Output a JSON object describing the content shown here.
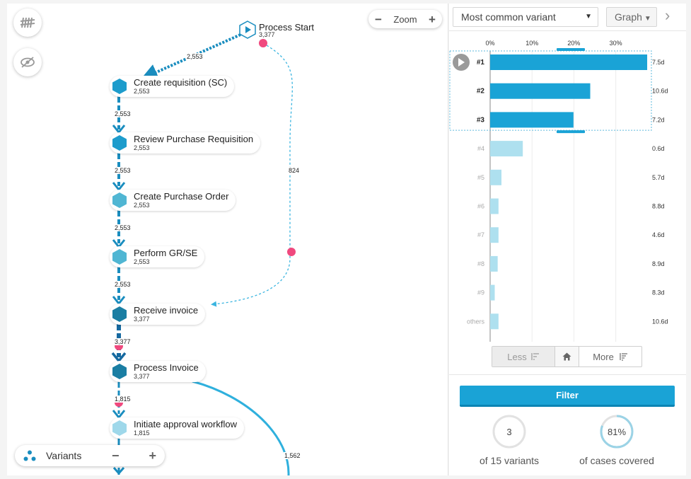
{
  "canvas": {
    "zoom_label": "Zoom",
    "zoom_minus": "−",
    "zoom_plus": "+",
    "variants_label": "Variants",
    "variants_minus": "−",
    "variants_plus": "+",
    "start": {
      "label": "Process Start",
      "count": "3,377"
    },
    "nodes": [
      {
        "label": "Create requisition (SC)",
        "count": "2,553"
      },
      {
        "label": "Review Purchase Requisition",
        "count": "2,553"
      },
      {
        "label": "Create Purchase Order",
        "count": "2,553"
      },
      {
        "label": "Perform GR/SE",
        "count": "2,553"
      },
      {
        "label": "Receive invoice",
        "count": "3,377"
      },
      {
        "label": "Process Invoice",
        "count": "3,377"
      },
      {
        "label": "Initiate approval workflow",
        "count": "1,815"
      }
    ],
    "edges": {
      "start_to_req": "2,553",
      "start_to_receive": "824",
      "req_to_review": "2,553",
      "review_to_po": "2,553",
      "po_to_gr": "2,553",
      "gr_to_receive": "2,553",
      "receive_to_process": "3,377",
      "process_to_approval": "1,815",
      "process_curve": "1,562"
    }
  },
  "panel": {
    "variant_select": "Most common variant",
    "graph_button": "Graph",
    "next_icon": "›",
    "less_label": "Less",
    "more_label": "More",
    "filter_label": "Filter",
    "variants_selected": "3",
    "variants_caption": "of 15 variants",
    "cases_percent": "81%",
    "cases_caption": "of cases covered"
  },
  "colors": {
    "primary": "#1aa3d6",
    "light_bar": "#aee0ef",
    "pink_marker": "#f0497e",
    "hex_dark": "#1a7ea3",
    "hex_mid": "#1d9ccc",
    "hex_light": "#50b6d3",
    "hex_pale": "#9fd8ea"
  },
  "chart_data": {
    "type": "bar",
    "orientation": "horizontal",
    "x_tick_labels": [
      "0%",
      "10%",
      "20%",
      "30%"
    ],
    "xlim": [
      0,
      38
    ],
    "categories": [
      "#1",
      "#2",
      "#3",
      "#4",
      "#5",
      "#6",
      "#7",
      "#8",
      "#9",
      "others"
    ],
    "values": [
      37.5,
      23.9,
      19.9,
      7.8,
      2.7,
      2.0,
      2.0,
      1.8,
      1.1,
      2.0
    ],
    "durations": [
      "7.5d",
      "10.6d",
      "7.2d",
      "0.6d",
      "5.7d",
      "8.8d",
      "4.6d",
      "8.9d",
      "8.3d",
      "10.6d"
    ],
    "selected_count": 3
  }
}
